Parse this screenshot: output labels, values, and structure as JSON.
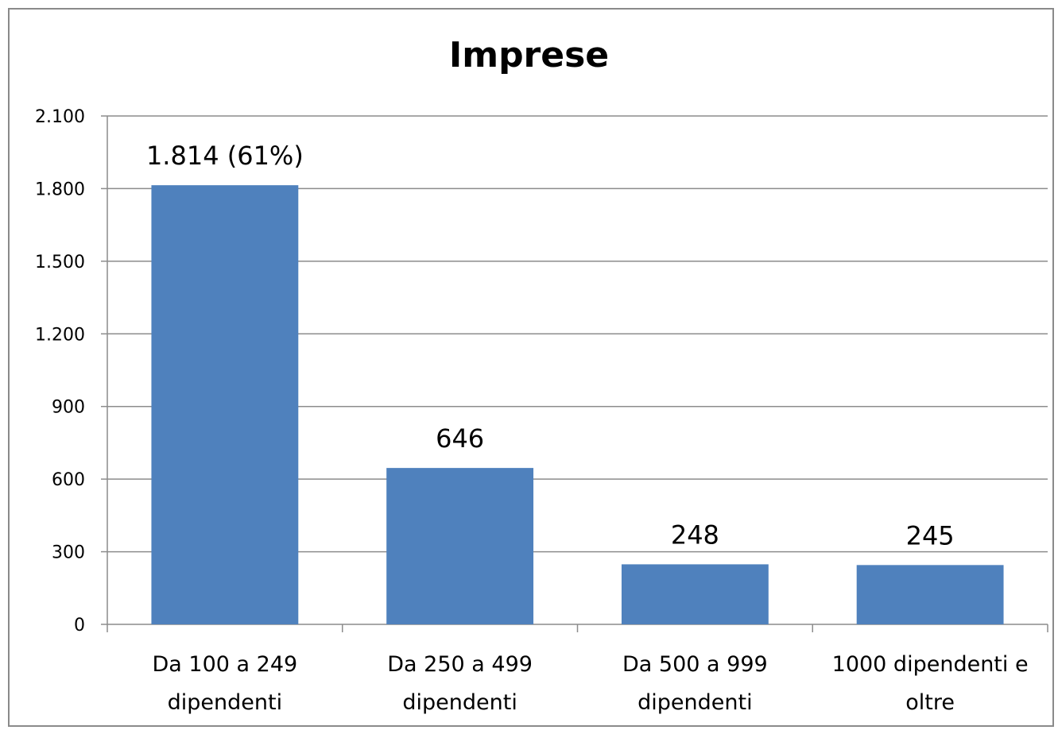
{
  "chart_data": {
    "type": "bar",
    "title": "Imprese",
    "xlabel": "",
    "ylabel": "",
    "categories": [
      [
        "Da 100 a 249",
        "dipendenti"
      ],
      [
        "Da 250 a 499",
        "dipendenti"
      ],
      [
        "Da 500 a 999",
        "dipendenti"
      ],
      [
        "1000 dipendenti e",
        "oltre"
      ]
    ],
    "values": [
      1814,
      646,
      248,
      245
    ],
    "data_labels": [
      "1.814 (61%)",
      "646",
      "248",
      "245"
    ],
    "ylim": [
      0,
      2100
    ],
    "yticks": [
      0,
      300,
      600,
      900,
      1200,
      1500,
      1800,
      2100
    ],
    "ytick_labels": [
      "0",
      "300",
      "600",
      "900",
      "1.200",
      "1.500",
      "1.800",
      "2.100"
    ],
    "bar_color": "#4f81bd",
    "grid": true,
    "legend": "none"
  }
}
